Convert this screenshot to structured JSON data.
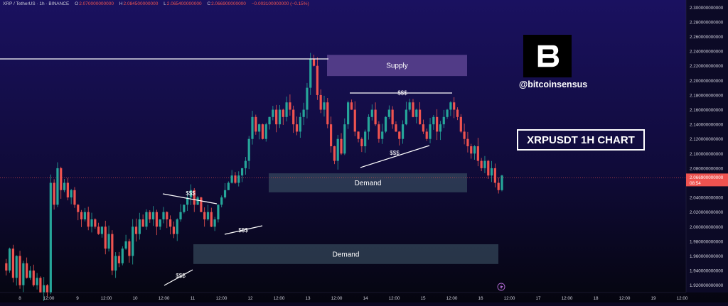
{
  "header": {
    "symbol": "XRP / TetherUS · 1h · BINANCE",
    "open_label": "O",
    "open": "2.070000000000",
    "high_label": "H",
    "high": "2.084500000000",
    "low_label": "L",
    "low": "2.065400000000",
    "close_label": "C",
    "close": "2.066900000000",
    "change": "−0.003100000000 (−0.15%)"
  },
  "branding": {
    "logo_icon": "bitcoinsensus-b-logo-icon",
    "handle": "@bitcoinsensus",
    "title": "XRPUSDT 1H CHART"
  },
  "colors": {
    "background_top": "#1a1160",
    "background_bottom": "#05050f",
    "candle_up": "#26a69a",
    "candle_down": "#ef5350",
    "supply_zone": "#6b4f9e",
    "demand_zone": "#3d5566",
    "price_label": "#ef5350"
  },
  "price_axis": {
    "ticks": [
      "2.300000000000",
      "2.280000000000",
      "2.260000000000",
      "2.240000000000",
      "2.220000000000",
      "2.200000000000",
      "2.180000000000",
      "2.160000000000",
      "2.140000000000",
      "2.120000000000",
      "2.100000000000",
      "2.080000000000",
      "2.060000000000",
      "2.040000000000",
      "2.020000000000",
      "2.000000000000",
      "1.980000000000",
      "1.960000000000",
      "1.940000000000",
      "1.920000000000"
    ],
    "current_price": "2.066900000000",
    "countdown": "08:54"
  },
  "time_axis": {
    "labels": [
      "8",
      "12:00",
      "9",
      "12:00",
      "10",
      "12:00",
      "11",
      "12:00",
      "12",
      "12:00",
      "13",
      "12:00",
      "14",
      "12:00",
      "15",
      "12:00",
      "16",
      "12:00",
      "17",
      "12:00",
      "18",
      "12:00",
      "19",
      "12:00"
    ]
  },
  "chart_data": {
    "type": "candlestick",
    "symbol": "XRP / TetherUS",
    "interval": "1h",
    "ylim": [
      1.91,
      2.31
    ],
    "zones": [
      {
        "label": "Supply",
        "type": "supply",
        "y_top": 2.235,
        "y_bottom": 2.206
      },
      {
        "label": "Demand",
        "type": "demand",
        "y_top": 2.073,
        "y_bottom": 2.047
      },
      {
        "label": "Demand",
        "type": "demand",
        "y_top": 1.976,
        "y_bottom": 1.949
      }
    ],
    "liquidity_labels": [
      "$$$",
      "$$$",
      "$$$",
      "$$$",
      "$$$"
    ],
    "price_path": [
      1.95,
      1.94,
      1.97,
      1.93,
      1.96,
      1.92,
      1.95,
      1.93,
      1.94,
      1.92,
      1.93,
      1.91,
      1.92,
      1.91,
      2.06,
      2.03,
      2.08,
      2.05,
      2.06,
      2.04,
      2.05,
      2.03,
      2.02,
      2.01,
      2.02,
      2.0,
      2.01,
      2.0,
      1.99,
      2.0,
      1.97,
      1.99,
      1.94,
      1.96,
      1.95,
      1.97,
      1.98,
      1.96,
      2.0,
      1.99,
      2.01,
      2.0,
      2.02,
      2.01,
      2.02,
      2.0,
      2.01,
      2.02,
      2.01,
      2.0,
      1.99,
      2.01,
      2.02,
      2.03,
      2.04,
      2.05,
      2.03,
      2.04,
      2.02,
      2.01,
      2.02,
      2.0,
      2.01,
      2.03,
      2.04,
      2.05,
      2.06,
      2.07,
      2.06,
      2.07,
      2.08,
      2.09,
      2.12,
      2.15,
      2.13,
      2.14,
      2.12,
      2.14,
      2.15,
      2.16,
      2.14,
      2.16,
      2.15,
      2.17,
      2.16,
      2.14,
      2.13,
      2.15,
      2.16,
      2.19,
      2.23,
      2.22,
      2.18,
      2.16,
      2.17,
      2.14,
      2.11,
      2.09,
      2.12,
      2.1,
      2.14,
      2.17,
      2.16,
      2.13,
      2.12,
      2.11,
      2.13,
      2.15,
      2.16,
      2.14,
      2.12,
      2.13,
      2.15,
      2.16,
      2.14,
      2.13,
      2.12,
      2.14,
      2.16,
      2.17,
      2.15,
      2.16,
      2.14,
      2.13,
      2.12,
      2.14,
      2.15,
      2.13,
      2.14,
      2.15,
      2.16,
      2.17,
      2.16,
      2.15,
      2.13,
      2.12,
      2.11,
      2.1,
      2.11,
      2.09,
      2.08,
      2.09,
      2.07,
      2.08,
      2.06,
      2.05,
      2.07
    ],
    "current_price": 2.0669
  }
}
